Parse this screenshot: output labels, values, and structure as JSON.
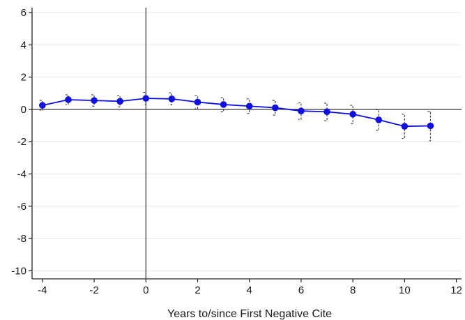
{
  "chart_data": {
    "type": "line",
    "title": "",
    "xlabel": "Years to/since First Negative Cite",
    "ylabel": "",
    "xlim": [
      -4.4,
      12.2
    ],
    "ylim": [
      -10.5,
      6.3
    ],
    "x_ticks": [
      -4,
      -2,
      0,
      2,
      4,
      6,
      8,
      10,
      12
    ],
    "y_ticks": [
      6,
      4,
      2,
      0,
      -2,
      -4,
      -6,
      -8,
      -10
    ],
    "grid": "horizontal",
    "reference_lines": {
      "y": 0,
      "x": 0
    },
    "series": [
      {
        "x": [
          -4,
          -3,
          -2,
          -1,
          0,
          1,
          2,
          3,
          4,
          5,
          6,
          7,
          8,
          9,
          10,
          11
        ],
        "values": [
          0.25,
          0.6,
          0.55,
          0.5,
          0.68,
          0.65,
          0.45,
          0.3,
          0.2,
          0.1,
          -0.1,
          -0.15,
          -0.3,
          -0.65,
          -1.05,
          -1.02
        ],
        "ci_low": [
          -0.05,
          0.3,
          0.2,
          0.15,
          0.3,
          0.28,
          0.05,
          -0.15,
          -0.25,
          -0.35,
          -0.62,
          -0.7,
          -0.88,
          -1.3,
          -1.8,
          -1.95
        ],
        "ci_high": [
          0.55,
          0.9,
          0.9,
          0.85,
          1.05,
          1.02,
          0.85,
          0.72,
          0.65,
          0.55,
          0.4,
          0.38,
          0.25,
          -0.02,
          -0.3,
          -0.12
        ]
      }
    ],
    "colors": {
      "series": "#1010dd",
      "ci": "#444444",
      "grid": "#e1e8ee",
      "axis": "#222222",
      "reference": "#333333"
    }
  }
}
